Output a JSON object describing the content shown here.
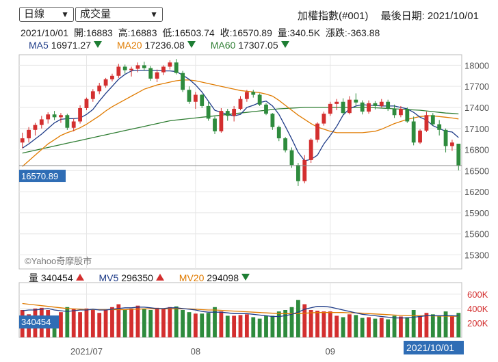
{
  "controls": {
    "period_label": "日線",
    "indicator_label": "成交量"
  },
  "header": {
    "index_name": "加權指數(#001)",
    "last_date_text": "最後日期: 2021/10/01"
  },
  "ohlc": {
    "date": "2021/10/01",
    "open_text": "開:16883",
    "high_text": "高:16883",
    "low_text": "低:16503.74",
    "close_text": "收:16570.89",
    "volume_text": "量:340.5K",
    "change_text": "漲跌:-363.88"
  },
  "ma_legend": [
    {
      "name": "MA5",
      "value": "16971.27",
      "color": "#1f3c88",
      "trend": "down"
    },
    {
      "name": "MA20",
      "value": "17236.08",
      "color": "#e07b00",
      "trend": "down"
    },
    {
      "name": "MA60",
      "value": "17307.05",
      "color": "#2e7d32",
      "trend": "down"
    }
  ],
  "vol_legend": [
    {
      "name": "量",
      "value": "340454",
      "color": "#222222",
      "trend": "up"
    },
    {
      "name": "MV5",
      "value": "296350",
      "color": "#1f3c88",
      "trend": "up"
    },
    {
      "name": "MV20",
      "value": "294098",
      "color": "#e07b00",
      "trend": "down"
    }
  ],
  "watermark": "©Yahoo奇摩股市",
  "current_price_label": "16570.89",
  "current_volume_label": "340454",
  "current_date_label": "2021/10/01",
  "colors": {
    "up": "#d32f2f",
    "down": "#2e8b3d",
    "ma5": "#1f3c88",
    "ma20": "#e07b00",
    "ma60": "#2e7d32",
    "label_bg": "#2f6db5"
  },
  "chart_data": {
    "type": "candlestick",
    "price_axis": {
      "min": 15100,
      "max": 18150,
      "ticks": [
        18000,
        17700,
        17400,
        17100,
        16800,
        16500,
        16200,
        15900,
        15600,
        15300
      ]
    },
    "volume_axis": {
      "min": 0,
      "max": 760,
      "unit": "K",
      "ticks": [
        600,
        400,
        200
      ],
      "tick_labels": [
        "600K",
        "400K",
        "200K"
      ]
    },
    "x_ticks": [
      {
        "label": "2021/07",
        "index": 10
      },
      {
        "label": "08",
        "index": 27
      },
      {
        "label": "09",
        "index": 48
      }
    ],
    "candles": [
      [
        16900,
        17040,
        16820,
        16960,
        380
      ],
      [
        16960,
        17120,
        16900,
        17080,
        320
      ],
      [
        17080,
        17180,
        17000,
        17150,
        400
      ],
      [
        17150,
        17280,
        17100,
        17230,
        410
      ],
      [
        17230,
        17330,
        17170,
        17300,
        380
      ],
      [
        17300,
        17350,
        17220,
        17260,
        300
      ],
      [
        17260,
        17320,
        17180,
        17290,
        350
      ],
      [
        17290,
        17310,
        17080,
        17110,
        420
      ],
      [
        17110,
        17240,
        17060,
        17200,
        390
      ],
      [
        17200,
        17430,
        17170,
        17390,
        350
      ],
      [
        17390,
        17540,
        17360,
        17520,
        400
      ],
      [
        17520,
        17660,
        17480,
        17630,
        390
      ],
      [
        17630,
        17750,
        17590,
        17710,
        340
      ],
      [
        17710,
        17820,
        17680,
        17800,
        390
      ],
      [
        17800,
        17880,
        17770,
        17850,
        420
      ],
      [
        17850,
        18020,
        17820,
        17980,
        460
      ],
      [
        17980,
        18010,
        17880,
        17930,
        380
      ],
      [
        17930,
        17980,
        17840,
        17950,
        400
      ],
      [
        17950,
        18040,
        17900,
        18000,
        440
      ],
      [
        18000,
        18050,
        17920,
        17960,
        400
      ],
      [
        17960,
        17990,
        17780,
        17810,
        380
      ],
      [
        17810,
        17940,
        17760,
        17900,
        410
      ],
      [
        17900,
        18000,
        17860,
        17980,
        400
      ],
      [
        17980,
        18070,
        17940,
        18040,
        420
      ],
      [
        18040,
        18090,
        17870,
        17890,
        430
      ],
      [
        17890,
        17920,
        17620,
        17650,
        380
      ],
      [
        17650,
        17700,
        17450,
        17480,
        350
      ],
      [
        17480,
        17620,
        17380,
        17580,
        330
      ],
      [
        17580,
        17590,
        17390,
        17420,
        330
      ],
      [
        17420,
        17480,
        17210,
        17240,
        340
      ],
      [
        17240,
        17270,
        17020,
        17060,
        420
      ],
      [
        17060,
        17390,
        17040,
        17350,
        360
      ],
      [
        17350,
        17380,
        17210,
        17280,
        300
      ],
      [
        17280,
        17420,
        17200,
        17380,
        300
      ],
      [
        17380,
        17560,
        17360,
        17520,
        310
      ],
      [
        17520,
        17650,
        17480,
        17620,
        320
      ],
      [
        17620,
        17650,
        17540,
        17580,
        280
      ],
      [
        17580,
        17600,
        17420,
        17440,
        260
      ],
      [
        17440,
        17460,
        17290,
        17310,
        300
      ],
      [
        17310,
        17320,
        17080,
        17120,
        300
      ],
      [
        17120,
        17140,
        16920,
        16960,
        360
      ],
      [
        16960,
        16980,
        16760,
        16790,
        380
      ],
      [
        16790,
        16830,
        16540,
        16580,
        420
      ],
      [
        16580,
        16610,
        16280,
        16350,
        520
      ],
      [
        16350,
        16720,
        16320,
        16650,
        460
      ],
      [
        16650,
        16960,
        16610,
        16940,
        380
      ],
      [
        16940,
        17190,
        16900,
        17170,
        370
      ],
      [
        17170,
        17340,
        17140,
        17310,
        360
      ],
      [
        17310,
        17480,
        17280,
        17450,
        360
      ],
      [
        17450,
        17520,
        17360,
        17480,
        300
      ],
      [
        17480,
        17530,
        17290,
        17320,
        280
      ],
      [
        17320,
        17560,
        17300,
        17510,
        320
      ],
      [
        17510,
        17600,
        17430,
        17470,
        310
      ],
      [
        17470,
        17500,
        17300,
        17340,
        270
      ],
      [
        17340,
        17500,
        17310,
        17460,
        280
      ],
      [
        17460,
        17490,
        17370,
        17420,
        260
      ],
      [
        17420,
        17520,
        17400,
        17480,
        270
      ],
      [
        17480,
        17510,
        17350,
        17380,
        250
      ],
      [
        17380,
        17440,
        17250,
        17290,
        300
      ],
      [
        17290,
        17420,
        17260,
        17380,
        290
      ],
      [
        17380,
        17400,
        17180,
        17200,
        280
      ],
      [
        17200,
        17270,
        16860,
        16900,
        380
      ],
      [
        16900,
        17090,
        16880,
        17070,
        300
      ],
      [
        17070,
        17340,
        17050,
        17290,
        340
      ],
      [
        17290,
        17320,
        17140,
        17160,
        320
      ],
      [
        17160,
        17220,
        17000,
        17080,
        300
      ],
      [
        17080,
        17100,
        16760,
        16850,
        360
      ],
      [
        16850,
        16940,
        16780,
        16900,
        300
      ],
      [
        16883,
        16883,
        16504,
        16571,
        340
      ]
    ],
    "ma5": [
      16820,
      16880,
      16950,
      17020,
      17100,
      17180,
      17230,
      17240,
      17240,
      17250,
      17300,
      17370,
      17490,
      17600,
      17700,
      17800,
      17870,
      17920,
      17930,
      17930,
      17930,
      17930,
      17920,
      17920,
      17910,
      17860,
      17800,
      17720,
      17620,
      17490,
      17360,
      17330,
      17300,
      17280,
      17300,
      17400,
      17430,
      17470,
      17490,
      17420,
      17300,
      17130,
      16950,
      16760,
      16640,
      16660,
      16720,
      16880,
      17000,
      17130,
      17290,
      17380,
      17420,
      17440,
      17430,
      17430,
      17420,
      17420,
      17420,
      17400,
      17380,
      17330,
      17260,
      17220,
      17140,
      17100,
      17060,
      17050,
      16971
    ],
    "ma20": [
      16560,
      16640,
      16720,
      16800,
      16880,
      16940,
      17000,
      17040,
      17070,
      17110,
      17160,
      17220,
      17280,
      17350,
      17410,
      17460,
      17510,
      17560,
      17610,
      17660,
      17690,
      17720,
      17740,
      17760,
      17780,
      17790,
      17790,
      17780,
      17760,
      17740,
      17720,
      17700,
      17680,
      17660,
      17640,
      17630,
      17620,
      17610,
      17590,
      17560,
      17500,
      17430,
      17360,
      17290,
      17230,
      17170,
      17120,
      17090,
      17060,
      17040,
      17040,
      17040,
      17040,
      17040,
      17050,
      17060,
      17090,
      17130,
      17170,
      17200,
      17230,
      17250,
      17270,
      17280,
      17280,
      17270,
      17260,
      17250,
      17236
    ],
    "ma60": [
      16750,
      16770,
      16790,
      16810,
      16830,
      16850,
      16870,
      16890,
      16910,
      16930,
      16950,
      16970,
      16990,
      17010,
      17030,
      17050,
      17070,
      17090,
      17110,
      17130,
      17150,
      17170,
      17190,
      17210,
      17220,
      17230,
      17240,
      17250,
      17260,
      17270,
      17280,
      17290,
      17300,
      17310,
      17320,
      17330,
      17340,
      17350,
      17360,
      17370,
      17380,
      17385,
      17390,
      17395,
      17400,
      17400,
      17400,
      17400,
      17400,
      17400,
      17400,
      17400,
      17400,
      17400,
      17400,
      17395,
      17390,
      17385,
      17380,
      17375,
      17370,
      17365,
      17360,
      17350,
      17340,
      17330,
      17320,
      17315,
      17307
    ],
    "mv5": [
      370,
      380,
      380,
      390,
      400,
      380,
      370,
      360,
      370,
      380,
      380,
      390,
      380,
      380,
      390,
      400,
      410,
      410,
      420,
      420,
      410,
      400,
      400,
      410,
      410,
      400,
      390,
      380,
      360,
      350,
      350,
      350,
      340,
      330,
      330,
      330,
      320,
      310,
      300,
      290,
      290,
      300,
      320,
      350,
      390,
      410,
      430,
      430,
      420,
      400,
      380,
      360,
      340,
      320,
      310,
      300,
      290,
      280,
      270,
      270,
      270,
      280,
      290,
      300,
      300,
      300,
      300,
      300,
      296
    ],
    "mv20": [
      470,
      460,
      450,
      440,
      430,
      420,
      410,
      400,
      395,
      390,
      385,
      385,
      385,
      385,
      385,
      385,
      385,
      390,
      390,
      395,
      395,
      395,
      395,
      395,
      395,
      395,
      395,
      390,
      385,
      380,
      380,
      375,
      370,
      365,
      360,
      355,
      350,
      345,
      340,
      335,
      330,
      330,
      330,
      330,
      335,
      340,
      345,
      345,
      345,
      345,
      345,
      340,
      340,
      335,
      330,
      325,
      320,
      315,
      310,
      305,
      300,
      300,
      300,
      300,
      298,
      296,
      295,
      294,
      294
    ]
  }
}
